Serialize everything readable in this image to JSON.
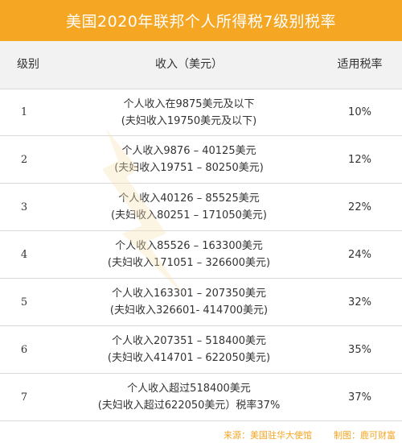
{
  "title": "美国2020年联邦个人所得税7级别税率",
  "header": {
    "level": "级别",
    "income": "收入（美元）",
    "rate": "适用税率"
  },
  "rows": [
    {
      "level": "1",
      "line1": "个人收入在9875美元及以下",
      "line2": "(夫妇收入19750美元及以下)",
      "rate": "10%"
    },
    {
      "level": "2",
      "line1": "个人收入9876 – 40125美元",
      "line2": "(夫妇收入19751 – 80250美元)",
      "rate": "12%"
    },
    {
      "level": "3",
      "line1": "个人收入40126 – 85525美元",
      "line2": "(夫妇收入80251 – 171050美元)",
      "rate": "22%"
    },
    {
      "level": "4",
      "line1": "个人收入85526 – 163300美元",
      "line2": "(夫妇收入171051 – 326600美元)",
      "rate": "24%"
    },
    {
      "level": "5",
      "line1": "个人收入163301 – 207350美元",
      "line2": "(夫妇收入326601- 414700美元)",
      "rate": "32%"
    },
    {
      "level": "6",
      "line1": "个人收入207351 – 518400美元",
      "line2": "(夫妇收入414701 – 622050美元)",
      "rate": "35%"
    },
    {
      "level": "7",
      "line1": "个人收入超过518400美元",
      "line2": "(夫妇收入超过622050美元）税率37%",
      "rate": "37%"
    }
  ],
  "footer": {
    "source": "来源：美国驻华大使馆",
    "maker": "制图：鹿可财富"
  },
  "colors": {
    "accent": "#f5a623",
    "header_bg": "#f2f2f2",
    "divider": "#d9d9d9"
  }
}
